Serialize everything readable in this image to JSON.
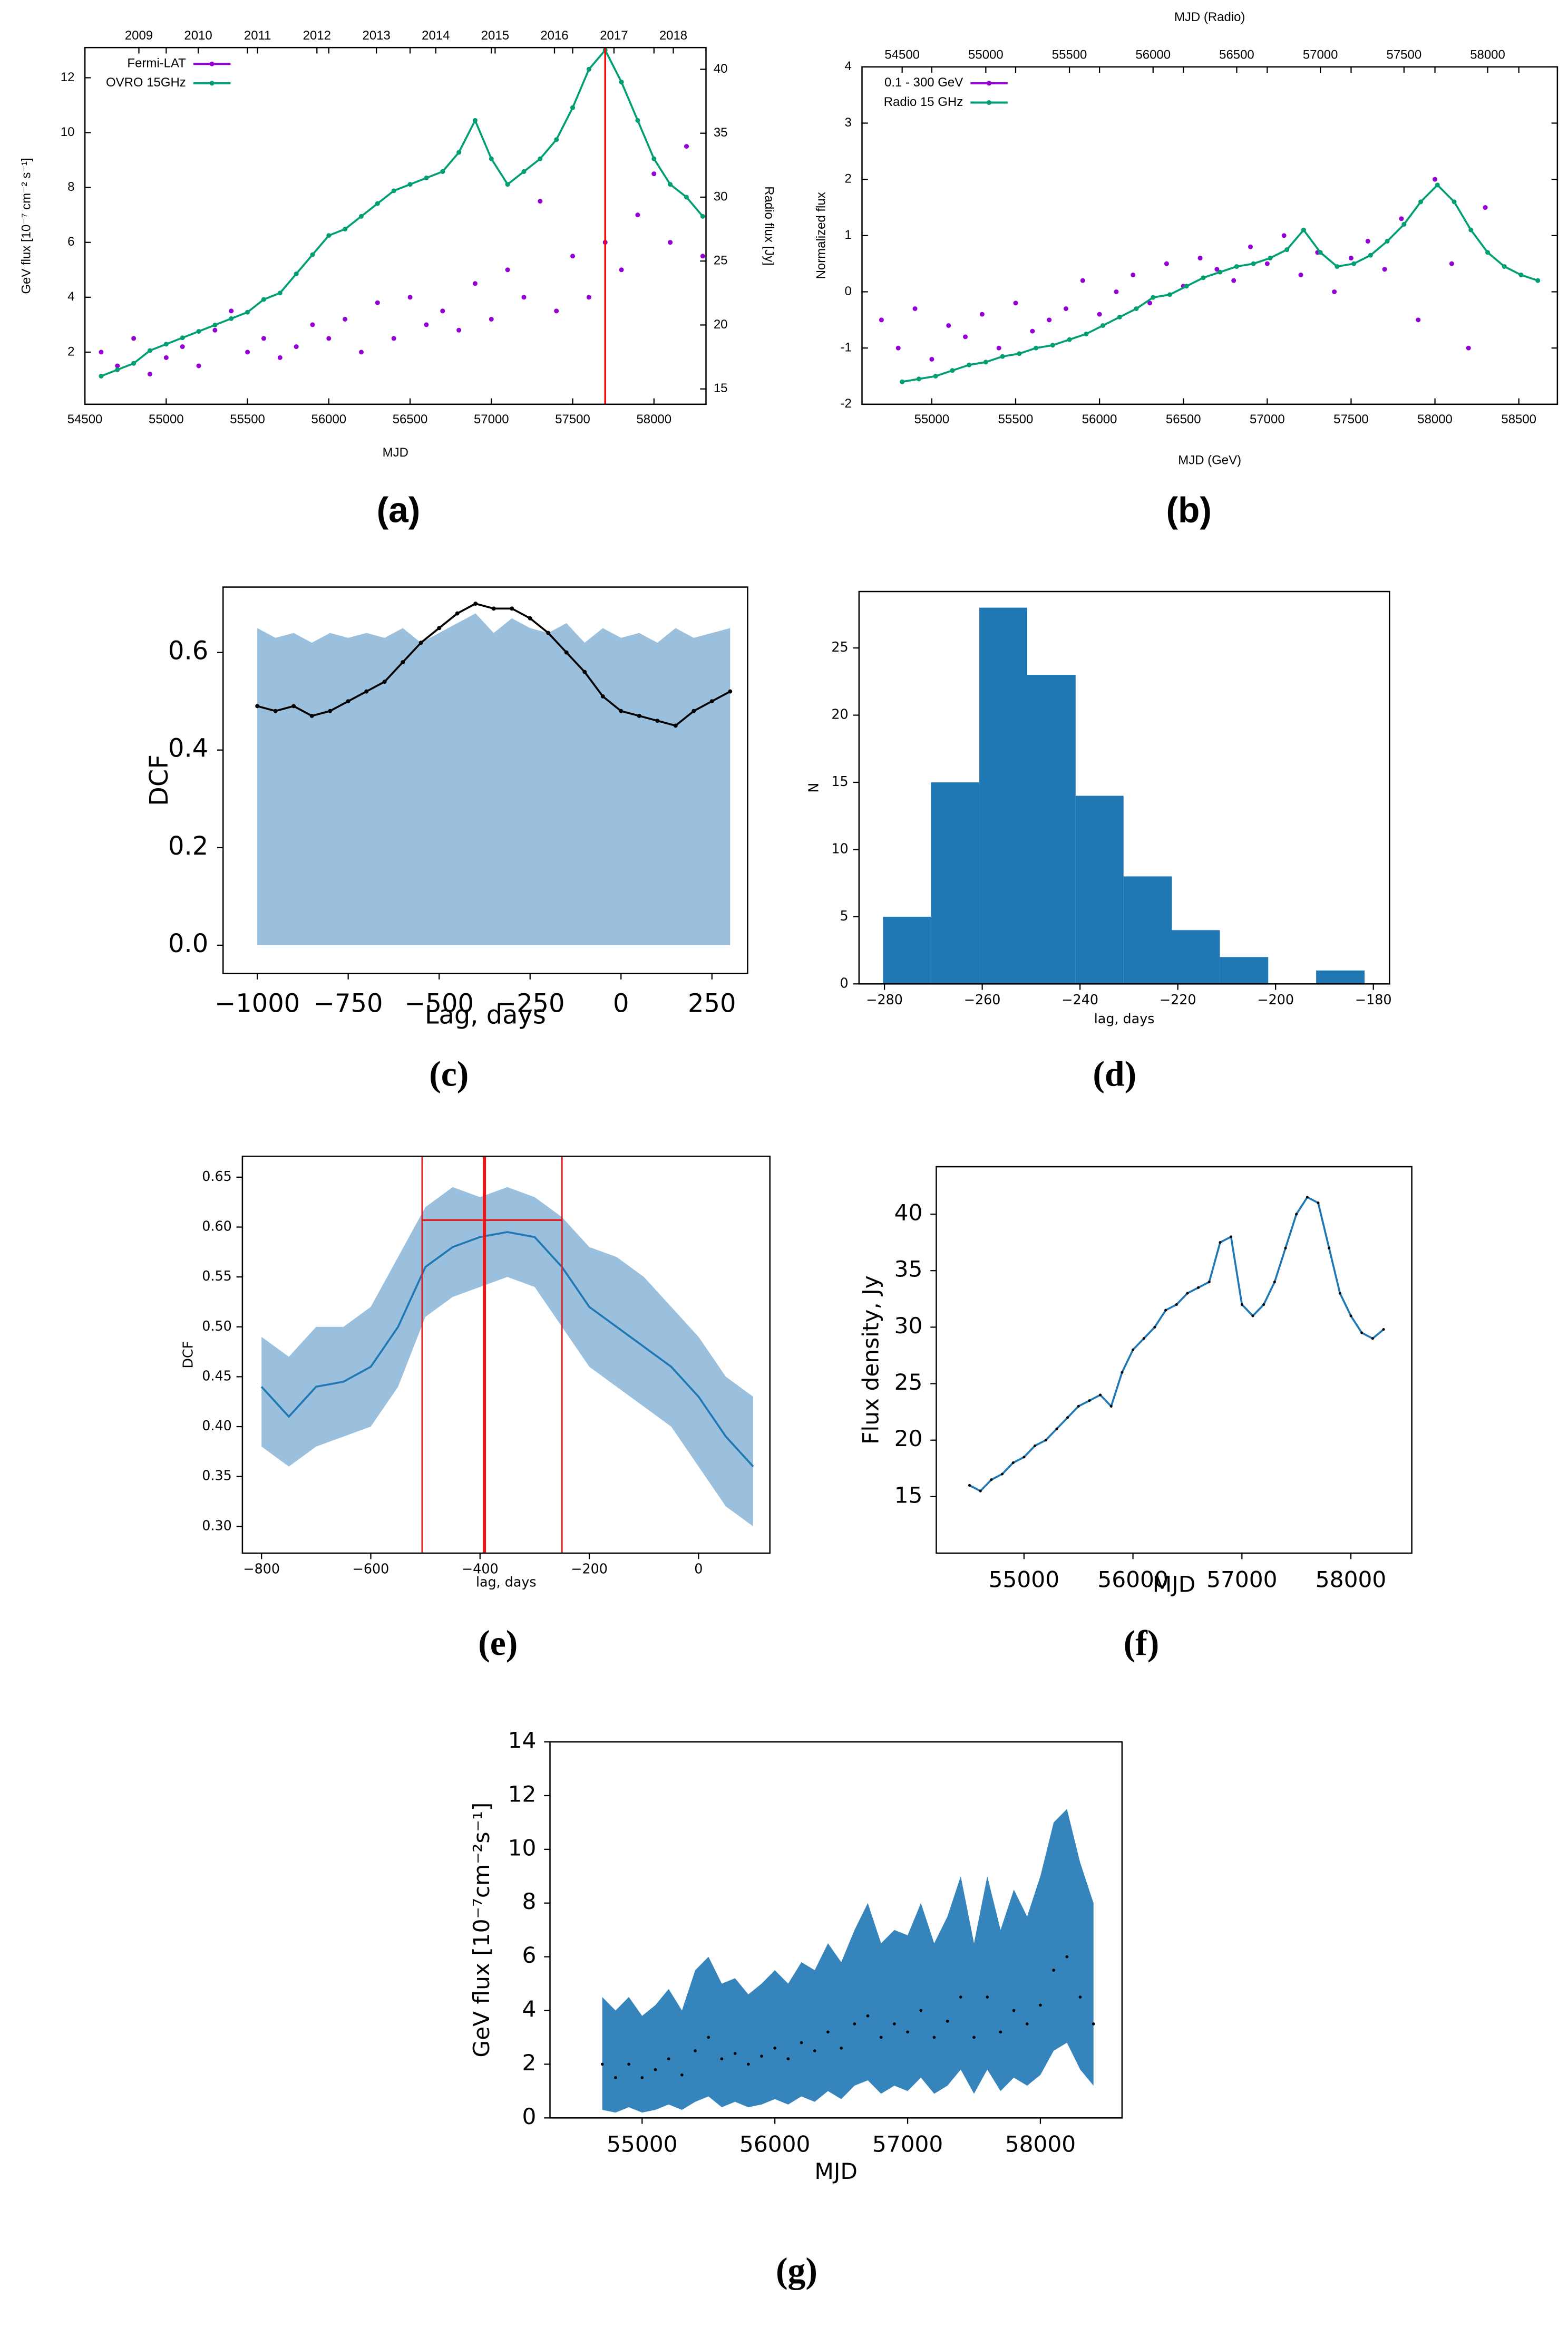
{
  "chart_data": [
    {
      "type": "line",
      "panel_label": "(a)",
      "xlabel": "MJD",
      "ylabel": "GeV flux [10⁻⁷ cm⁻² s⁻¹]",
      "y2label": "Radio flux [Jy]",
      "xlim": [
        54500,
        58320
      ],
      "xticks": [
        54500,
        55000,
        55500,
        56000,
        56500,
        57000,
        57500,
        58000
      ],
      "x2ticks": [
        {
          "value": 54832,
          "label": "2009"
        },
        {
          "value": 55197,
          "label": "2010"
        },
        {
          "value": 55562,
          "label": "2011"
        },
        {
          "value": 55927,
          "label": "2012"
        },
        {
          "value": 56293,
          "label": "2013"
        },
        {
          "value": 56658,
          "label": "2014"
        },
        {
          "value": 57023,
          "label": "2015"
        },
        {
          "value": 57388,
          "label": "2016"
        },
        {
          "value": 57754,
          "label": "2017"
        },
        {
          "value": 58119,
          "label": "2018"
        }
      ],
      "ylim": [
        0.1,
        13.1
      ],
      "yticks": [
        2,
        4,
        6,
        8,
        10,
        12
      ],
      "y2lim": [
        13.8,
        41.7
      ],
      "y2ticks": [
        15,
        20,
        25,
        30,
        35,
        40
      ],
      "vline_x": 57700,
      "vline_color": "#ff0000",
      "legend": "upper left",
      "series": [
        {
          "name": "Fermi-LAT",
          "color": "#9400d3",
          "style": "points",
          "x": [
            54600,
            54700,
            54800,
            54900,
            55000,
            55100,
            55200,
            55300,
            55400,
            55500,
            55600,
            55700,
            55800,
            55900,
            56000,
            56100,
            56200,
            56300,
            56400,
            56500,
            56600,
            56700,
            56800,
            56900,
            57000,
            57100,
            57200,
            57300,
            57400,
            57500,
            57600,
            57700,
            57800,
            57900,
            58000,
            58100,
            58200,
            58300
          ],
          "values": [
            2.0,
            1.5,
            2.5,
            1.2,
            1.8,
            2.2,
            1.5,
            2.8,
            3.5,
            2.0,
            2.5,
            1.8,
            2.2,
            3.0,
            2.5,
            3.2,
            2.0,
            3.8,
            2.5,
            4.0,
            3.0,
            3.5,
            2.8,
            4.5,
            3.2,
            5.0,
            4.0,
            7.5,
            3.5,
            5.5,
            4.0,
            6.0,
            5.0,
            7.0,
            8.5,
            6.0,
            9.5,
            5.5
          ]
        },
        {
          "name": "OVRO 15GHz",
          "color": "#009e73",
          "style": "linepoints",
          "axis": "y2",
          "x": [
            54600,
            54700,
            54800,
            54900,
            55000,
            55100,
            55200,
            55300,
            55400,
            55500,
            55600,
            55700,
            55800,
            55900,
            56000,
            56100,
            56200,
            56300,
            56400,
            56500,
            56600,
            56700,
            56800,
            56900,
            57000,
            57100,
            57200,
            57300,
            57400,
            57500,
            57600,
            57700,
            57800,
            57900,
            58000,
            58100,
            58200,
            58300
          ],
          "values": [
            16,
            16.5,
            17,
            18,
            18.5,
            19,
            19.5,
            20,
            20.5,
            21,
            22,
            22.5,
            24,
            25.5,
            27,
            27.5,
            28.5,
            29.5,
            30.5,
            31,
            31.5,
            32,
            33.5,
            36,
            33,
            31,
            32,
            33,
            34.5,
            37,
            40,
            41.5,
            39,
            36,
            33,
            31,
            30,
            28.5
          ]
        }
      ]
    },
    {
      "type": "line",
      "panel_label": "(b)",
      "xlabel": "MJD (GeV)",
      "x2label": "MJD (Radio)",
      "ylabel": "Normalized flux",
      "xlim": [
        54584,
        58730
      ],
      "xticks": [
        55000,
        55500,
        56000,
        56500,
        57000,
        57500,
        58000,
        58500
      ],
      "x2lim": [
        54260,
        58417
      ],
      "x2ticks": [
        54500,
        55000,
        55500,
        56000,
        56500,
        57000,
        57500,
        58000
      ],
      "ylim": [
        -2,
        4
      ],
      "yticks": [
        -2,
        -1,
        0,
        1,
        2,
        3,
        4
      ],
      "legend": "upper left",
      "series": [
        {
          "name": "0.1 - 300 GeV",
          "color": "#9400d3",
          "style": "points",
          "x": [
            54700,
            54800,
            54900,
            55000,
            55100,
            55200,
            55300,
            55400,
            55500,
            55600,
            55700,
            55800,
            55900,
            56000,
            56100,
            56200,
            56300,
            56400,
            56500,
            56600,
            56700,
            56800,
            56900,
            57000,
            57100,
            57200,
            57300,
            57400,
            57500,
            57600,
            57700,
            57800,
            57900,
            58000,
            58100,
            58200,
            58300
          ],
          "values": [
            -0.5,
            -1.0,
            -0.3,
            -1.2,
            -0.6,
            -0.8,
            -0.4,
            -1.0,
            -0.2,
            -0.7,
            -0.5,
            -0.3,
            0.2,
            -0.4,
            0.0,
            0.3,
            -0.2,
            0.5,
            0.1,
            0.6,
            0.4,
            0.2,
            0.8,
            0.5,
            1.0,
            0.3,
            0.7,
            0.0,
            0.6,
            0.9,
            0.4,
            1.3,
            -0.5,
            2.0,
            0.5,
            -1.0,
            1.5
          ]
        },
        {
          "name": "Radio 15 GHz",
          "color": "#009e73",
          "style": "linepoints",
          "axis": "x2",
          "x": [
            54500,
            54600,
            54700,
            54800,
            54900,
            55000,
            55100,
            55200,
            55300,
            55400,
            55500,
            55600,
            55700,
            55800,
            55900,
            56000,
            56100,
            56200,
            56300,
            56400,
            56500,
            56600,
            56700,
            56800,
            56900,
            57000,
            57100,
            57200,
            57300,
            57400,
            57500,
            57600,
            57700,
            57800,
            57900,
            58000,
            58100,
            58200,
            58300
          ],
          "values": [
            -1.6,
            -1.55,
            -1.5,
            -1.4,
            -1.3,
            -1.25,
            -1.15,
            -1.1,
            -1.0,
            -0.95,
            -0.85,
            -0.75,
            -0.6,
            -0.45,
            -0.3,
            -0.1,
            -0.05,
            0.1,
            0.25,
            0.35,
            0.45,
            0.5,
            0.6,
            0.75,
            1.1,
            0.7,
            0.45,
            0.5,
            0.65,
            0.9,
            1.2,
            1.6,
            1.9,
            1.6,
            1.1,
            0.7,
            0.45,
            0.3,
            0.2
          ]
        }
      ]
    },
    {
      "type": "area",
      "panel_label": "(c)",
      "xlabel": "Lag, days",
      "ylabel": "DCF",
      "xlim": [
        -1094,
        348
      ],
      "xticks": [
        {
          "value": -1000,
          "label": "−1000"
        },
        {
          "value": -750,
          "label": "−750"
        },
        {
          "value": -500,
          "label": "−500"
        },
        {
          "value": -250,
          "label": "−250"
        },
        0,
        250
      ],
      "ylim": [
        -0.058,
        0.734
      ],
      "yticks": [
        {
          "value": 0,
          "label": "0.0"
        },
        0.2,
        0.4,
        0.6
      ],
      "color": "#000000",
      "band_color": "#8fb9da",
      "style": "linepoints",
      "x": [
        -1000,
        -950,
        -900,
        -850,
        -800,
        -750,
        -700,
        -650,
        -600,
        -550,
        -500,
        -450,
        -400,
        -350,
        -300,
        -250,
        -200,
        -150,
        -100,
        -50,
        0,
        50,
        100,
        150,
        200,
        250,
        300
      ],
      "values": [
        0.49,
        0.48,
        0.49,
        0.47,
        0.48,
        0.5,
        0.52,
        0.54,
        0.58,
        0.62,
        0.65,
        0.68,
        0.7,
        0.69,
        0.69,
        0.67,
        0.64,
        0.6,
        0.56,
        0.51,
        0.48,
        0.47,
        0.46,
        0.45,
        0.48,
        0.5,
        0.52
      ],
      "upper": [
        0.65,
        0.63,
        0.64,
        0.62,
        0.64,
        0.63,
        0.64,
        0.63,
        0.65,
        0.62,
        0.64,
        0.66,
        0.68,
        0.64,
        0.67,
        0.65,
        0.64,
        0.66,
        0.62,
        0.65,
        0.63,
        0.64,
        0.62,
        0.65,
        0.63,
        0.64,
        0.65
      ]
    },
    {
      "type": "histogram",
      "panel_label": "(d)",
      "xlabel": "lag, days",
      "ylabel": "N",
      "color": "#1f77b4",
      "xlim": [
        -285.2,
        -176.7
      ],
      "xticks": [
        {
          "value": -280,
          "label": "−280"
        },
        {
          "value": -260,
          "label": "−260"
        },
        {
          "value": -240,
          "label": "−240"
        },
        {
          "value": -220,
          "label": "−220"
        },
        {
          "value": -200,
          "label": "−200"
        },
        {
          "value": -180,
          "label": "−180"
        }
      ],
      "ylim": [
        0,
        29.2
      ],
      "yticks": [
        0,
        5,
        10,
        15,
        20,
        25
      ],
      "bins": [
        -280.3,
        -270.5,
        -260.6,
        -250.8,
        -240.9,
        -231.1,
        -221.2,
        -211.4,
        -201.5,
        -191.7,
        -181.8
      ],
      "values": [
        5,
        15,
        28,
        23,
        14,
        8,
        4,
        2,
        0,
        1
      ]
    },
    {
      "type": "line",
      "panel_label": "(e)",
      "xlabel": "lag, days",
      "ylabel": "DCF",
      "xlim": [
        -835,
        130.6
      ],
      "xticks": [
        {
          "value": -800,
          "label": "−800"
        },
        {
          "value": -600,
          "label": "−600"
        },
        {
          "value": -400,
          "label": "−400"
        },
        {
          "value": -200,
          "label": "−200"
        },
        0
      ],
      "ylim": [
        0.2732,
        0.6709
      ],
      "yticks": [
        {
          "value": 0.3,
          "label": "0.30"
        },
        0.35,
        {
          "value": 0.4,
          "label": "0.40"
        },
        0.45,
        {
          "value": 0.5,
          "label": "0.50"
        },
        0.55,
        {
          "value": 0.6,
          "label": "0.60"
        },
        0.65
      ],
      "color": "#1f77b4",
      "band_color": "#8fb9da",
      "style": "line",
      "peak_lag": -392,
      "lag_interval": [
        -506,
        -250
      ],
      "peak_dcf": 0.607,
      "annotation_color": "#e41a1c",
      "x": [
        -800,
        -750,
        -700,
        -650,
        -600,
        -550,
        -500,
        -450,
        -400,
        -350,
        -300,
        -250,
        -200,
        -150,
        -100,
        -50,
        0,
        50,
        100
      ],
      "values": [
        0.44,
        0.41,
        0.44,
        0.445,
        0.46,
        0.5,
        0.56,
        0.58,
        0.59,
        0.595,
        0.59,
        0.56,
        0.52,
        0.5,
        0.48,
        0.46,
        0.43,
        0.39,
        0.36
      ],
      "upper": [
        0.49,
        0.47,
        0.5,
        0.5,
        0.52,
        0.57,
        0.62,
        0.64,
        0.63,
        0.64,
        0.63,
        0.61,
        0.58,
        0.57,
        0.55,
        0.52,
        0.49,
        0.45,
        0.43
      ],
      "lower": [
        0.38,
        0.36,
        0.38,
        0.39,
        0.4,
        0.44,
        0.51,
        0.53,
        0.54,
        0.55,
        0.54,
        0.5,
        0.46,
        0.44,
        0.42,
        0.4,
        0.36,
        0.32,
        0.3
      ]
    },
    {
      "type": "line",
      "panel_label": "(f)",
      "xlabel": "MJD",
      "ylabel": "Flux density, Jy",
      "xlim": [
        54195,
        58559
      ],
      "xticks": [
        55000,
        56000,
        57000,
        58000
      ],
      "ylim": [
        10,
        44.2
      ],
      "yticks": [
        15,
        20,
        25,
        30,
        35,
        40
      ],
      "color": "#1f77b4",
      "marker_color": "#000000",
      "style": "linepoints",
      "x": [
        54500,
        54600,
        54700,
        54800,
        54900,
        55000,
        55100,
        55200,
        55300,
        55400,
        55500,
        55600,
        55700,
        55800,
        55900,
        56000,
        56100,
        56200,
        56300,
        56400,
        56500,
        56600,
        56700,
        56800,
        56900,
        57000,
        57100,
        57200,
        57300,
        57400,
        57500,
        57600,
        57700,
        57800,
        57900,
        58000,
        58100,
        58200,
        58300
      ],
      "values": [
        16,
        15.5,
        16.5,
        17,
        18,
        18.5,
        19.5,
        20,
        21,
        22,
        23,
        23.5,
        24,
        23,
        26,
        28,
        29,
        30,
        31.5,
        32,
        33,
        33.5,
        34,
        37.5,
        38,
        32,
        31,
        32,
        34,
        37,
        40,
        41.5,
        41,
        37,
        33,
        31,
        29.5,
        29,
        29.8
      ]
    },
    {
      "type": "line",
      "panel_label": "(g)",
      "xlabel": "MJD",
      "ylabel": "GeV flux [10⁻⁷cm⁻²s⁻¹]",
      "xlim": [
        54306,
        58615
      ],
      "xticks": [
        55000,
        56000,
        57000,
        58000
      ],
      "ylim": [
        0,
        14
      ],
      "yticks": [
        0,
        2,
        4,
        6,
        8,
        10,
        12,
        14
      ],
      "band_color": "#1f77b4",
      "marker_color": "#000000",
      "style": "points",
      "x": [
        54700,
        54800,
        54900,
        55000,
        55100,
        55200,
        55300,
        55400,
        55500,
        55600,
        55700,
        55800,
        55900,
        56000,
        56100,
        56200,
        56300,
        56400,
        56500,
        56600,
        56700,
        56800,
        56900,
        57000,
        57100,
        57200,
        57300,
        57400,
        57500,
        57600,
        57700,
        57800,
        57900,
        58000,
        58100,
        58200,
        58300,
        58400
      ],
      "values": [
        2.0,
        1.5,
        2.0,
        1.5,
        1.8,
        2.2,
        1.6,
        2.5,
        3.0,
        2.2,
        2.4,
        2.0,
        2.3,
        2.6,
        2.2,
        2.8,
        2.5,
        3.2,
        2.6,
        3.5,
        3.8,
        3.0,
        3.5,
        3.2,
        4.0,
        3.0,
        3.6,
        4.5,
        3.0,
        4.5,
        3.2,
        4.0,
        3.5,
        4.2,
        5.5,
        6.0,
        4.5,
        3.5
      ],
      "upper": [
        4.5,
        4.0,
        4.5,
        3.8,
        4.2,
        4.8,
        4.0,
        5.5,
        6.0,
        5.0,
        5.2,
        4.6,
        5.0,
        5.5,
        5.0,
        5.8,
        5.5,
        6.5,
        5.8,
        7.0,
        8.0,
        6.5,
        7.0,
        6.8,
        8.0,
        6.5,
        7.5,
        9.0,
        6.5,
        9.0,
        7.0,
        8.5,
        7.5,
        9.0,
        11.0,
        11.5,
        9.5,
        8.0
      ],
      "lower": [
        0.3,
        0.2,
        0.4,
        0.2,
        0.3,
        0.5,
        0.3,
        0.6,
        0.8,
        0.4,
        0.6,
        0.4,
        0.5,
        0.7,
        0.5,
        0.8,
        0.6,
        1.0,
        0.7,
        1.2,
        1.4,
        0.9,
        1.2,
        1.0,
        1.5,
        0.9,
        1.2,
        1.8,
        0.9,
        1.8,
        1.0,
        1.5,
        1.2,
        1.6,
        2.5,
        2.8,
        1.8,
        1.2
      ]
    }
  ]
}
